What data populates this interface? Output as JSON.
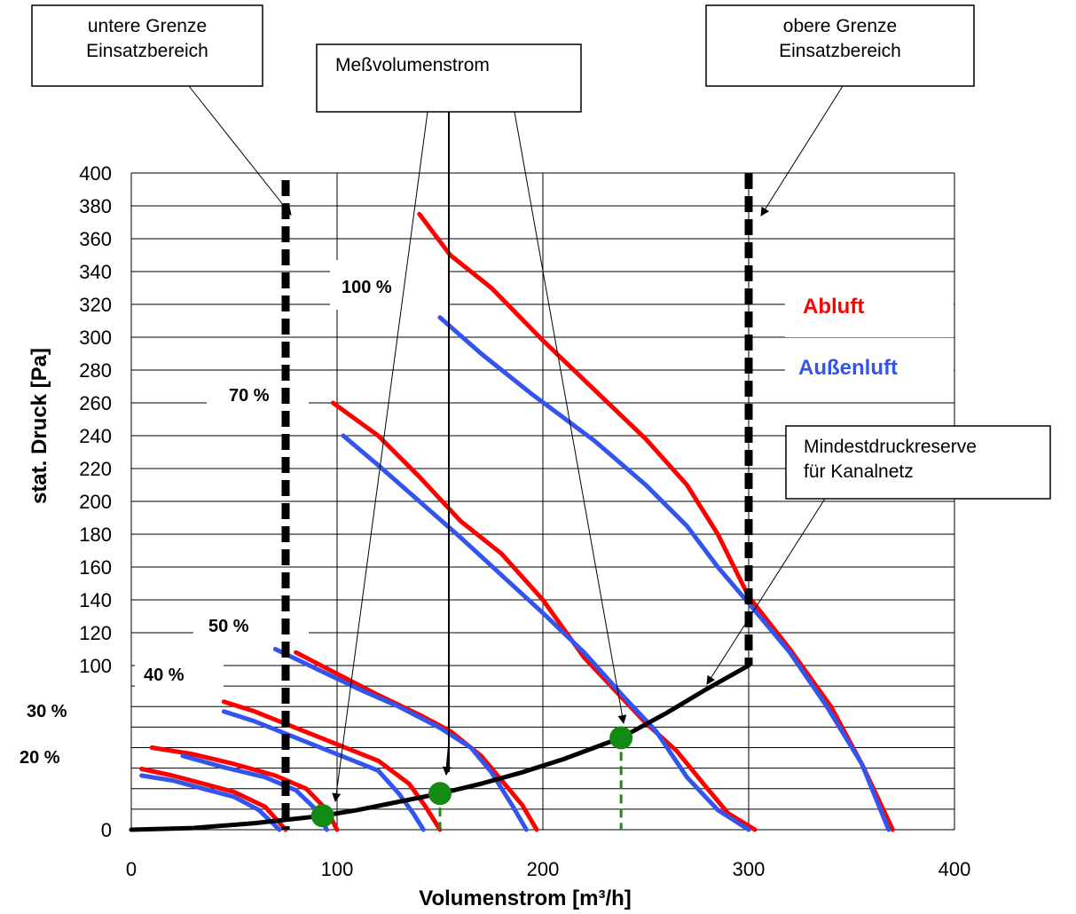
{
  "chart_data": {
    "type": "line",
    "xlabel": "Volumenstrom [m³/h]",
    "ylabel": "stat. Druck [Pa]",
    "xlim": [
      0,
      400
    ],
    "x_ticks": [
      "0",
      "100",
      "200",
      "300",
      "400"
    ],
    "y_ticks_upper": [
      "100",
      "120",
      "140",
      "160",
      "180",
      "200",
      "220",
      "240",
      "260",
      "280",
      "300",
      "320",
      "340",
      "360",
      "380",
      "400"
    ],
    "y_ticks_lower": [
      "0"
    ],
    "grid": true,
    "legend": [
      {
        "name": "Abluft",
        "color": "#ff0000"
      },
      {
        "name": "Außenluft",
        "color": "#3355ee"
      }
    ],
    "percent_labels": [
      "100 %",
      "70 %",
      "50 %",
      "40 %",
      "30 %",
      "20 %"
    ],
    "annotations": {
      "lower_limit": "untere Grenze\nEinsatzbereich",
      "measured_flow": "Meßvolumenstrom",
      "upper_limit": "obere Grenze\nEinsatzbereich",
      "min_pressure_reserve": "Mindestdruckreserve\nfür Kanalnetz"
    },
    "limits": {
      "lower_x": 75,
      "upper_x": 300
    },
    "series": [
      {
        "name": "Abluft",
        "color": "#ff0000",
        "curves": [
          {
            "label": "100 %",
            "points": [
              [
                140,
                375
              ],
              [
                155,
                350
              ],
              [
                175,
                330
              ],
              [
                200,
                298
              ],
              [
                230,
                262
              ],
              [
                250,
                238
              ],
              [
                270,
                210
              ],
              [
                285,
                180
              ],
              [
                300,
                142
              ],
              [
                320,
                110
              ],
              [
                340,
                75
              ],
              [
                355,
                40
              ],
              [
                370,
                0
              ]
            ]
          },
          {
            "label": "70 %",
            "points": [
              [
                98,
                260
              ],
              [
                120,
                240
              ],
              [
                140,
                215
              ],
              [
                160,
                188
              ],
              [
                180,
                168
              ],
              [
                200,
                140
              ],
              [
                220,
                105
              ],
              [
                235,
                85
              ],
              [
                250,
                65
              ],
              [
                265,
                48
              ],
              [
                280,
                25
              ],
              [
                290,
                10
              ],
              [
                303,
                0
              ]
            ]
          },
          {
            "label": "50 %",
            "points": [
              [
                80,
                108
              ],
              [
                100,
                95
              ],
              [
                120,
                82
              ],
              [
                140,
                70
              ],
              [
                155,
                60
              ],
              [
                170,
                45
              ],
              [
                180,
                30
              ],
              [
                190,
                15
              ],
              [
                197,
                0
              ]
            ]
          },
          {
            "label": "40 %",
            "points": [
              [
                45,
                78
              ],
              [
                60,
                72
              ],
              [
                80,
                62
              ],
              [
                100,
                52
              ],
              [
                120,
                42
              ],
              [
                135,
                28
              ],
              [
                143,
                14
              ],
              [
                150,
                0
              ]
            ]
          },
          {
            "label": "30 %",
            "points": [
              [
                10,
                50
              ],
              [
                30,
                46
              ],
              [
                50,
                40
              ],
              [
                70,
                33
              ],
              [
                85,
                25
              ],
              [
                95,
                12
              ],
              [
                100,
                0
              ]
            ]
          },
          {
            "label": "20 %",
            "points": [
              [
                5,
                37
              ],
              [
                20,
                33
              ],
              [
                35,
                28
              ],
              [
                50,
                23
              ],
              [
                65,
                14
              ],
              [
                75,
                0
              ]
            ]
          }
        ]
      },
      {
        "name": "Außenluft",
        "color": "#3355ee",
        "curves": [
          {
            "label": "100 %",
            "points": [
              [
                150,
                312
              ],
              [
                170,
                290
              ],
              [
                195,
                265
              ],
              [
                225,
                237
              ],
              [
                250,
                210
              ],
              [
                270,
                185
              ],
              [
                285,
                160
              ],
              [
                300,
                138
              ],
              [
                320,
                108
              ],
              [
                338,
                75
              ],
              [
                355,
                40
              ],
              [
                368,
                0
              ]
            ]
          },
          {
            "label": "70 %",
            "points": [
              [
                103,
                240
              ],
              [
                120,
                222
              ],
              [
                140,
                200
              ],
              [
                160,
                178
              ],
              [
                180,
                155
              ],
              [
                200,
                132
              ],
              [
                220,
                108
              ],
              [
                240,
                80
              ],
              [
                255,
                60
              ],
              [
                270,
                32
              ],
              [
                285,
                12
              ],
              [
                300,
                0
              ]
            ]
          },
          {
            "label": "50 %",
            "points": [
              [
                70,
                110
              ],
              [
                90,
                98
              ],
              [
                110,
                86
              ],
              [
                130,
                75
              ],
              [
                150,
                62
              ],
              [
                165,
                50
              ],
              [
                175,
                35
              ],
              [
                185,
                15
              ],
              [
                192,
                0
              ]
            ]
          },
          {
            "label": "40 %",
            "points": [
              [
                45,
                72
              ],
              [
                60,
                66
              ],
              [
                80,
                56
              ],
              [
                100,
                46
              ],
              [
                120,
                36
              ],
              [
                130,
                22
              ],
              [
                137,
                10
              ],
              [
                142,
                0
              ]
            ]
          },
          {
            "label": "30 %",
            "points": [
              [
                25,
                45
              ],
              [
                45,
                38
              ],
              [
                65,
                32
              ],
              [
                80,
                24
              ],
              [
                90,
                12
              ],
              [
                95,
                0
              ]
            ]
          },
          {
            "label": "20 %",
            "points": [
              [
                5,
                33
              ],
              [
                20,
                30
              ],
              [
                35,
                25
              ],
              [
                50,
                20
              ],
              [
                62,
                12
              ],
              [
                72,
                0
              ]
            ]
          }
        ]
      }
    ],
    "system_curve": {
      "color": "#000000",
      "points": [
        [
          0,
          0
        ],
        [
          30,
          1
        ],
        [
          60,
          4
        ],
        [
          75,
          6
        ],
        [
          93,
          8.5
        ],
        [
          110,
          12
        ],
        [
          130,
          17
        ],
        [
          150,
          22
        ],
        [
          170,
          28
        ],
        [
          190,
          35
        ],
        [
          210,
          43
        ],
        [
          238,
          56
        ],
        [
          260,
          71
        ],
        [
          280,
          86
        ],
        [
          300,
          100
        ]
      ]
    },
    "measurement_points": [
      {
        "x": 93,
        "y": 8.5
      },
      {
        "x": 150,
        "y": 22
      },
      {
        "x": 238,
        "y": 56
      }
    ]
  }
}
